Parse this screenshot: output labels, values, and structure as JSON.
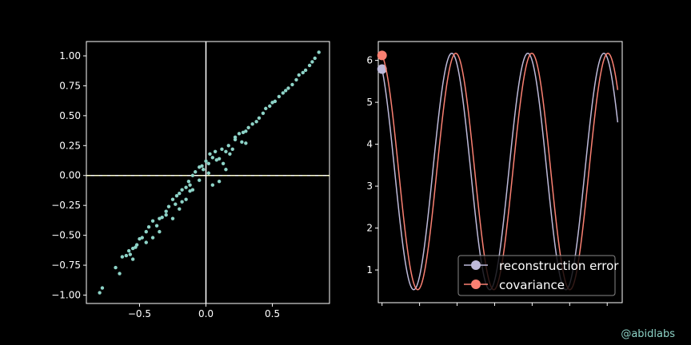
{
  "credit": "@abidlabs",
  "colors": {
    "background": "#000000",
    "axes": "#ffffff",
    "scatter": "#8dd3c7",
    "reconstruction": "#bebada",
    "covariance": "#fa8072",
    "credit": "#8dd3c7"
  },
  "chart_data": [
    {
      "type": "scatter",
      "xlim": [
        -0.9,
        0.93
      ],
      "ylim": [
        -1.07,
        1.12
      ],
      "xticks": [
        -0.5,
        0.0,
        0.5
      ],
      "xtick_labels": [
        "−0.5",
        "0.0",
        "0.5"
      ],
      "yticks": [
        -1.0,
        -0.75,
        -0.5,
        -0.25,
        0.0,
        0.25,
        0.5,
        0.75,
        1.0
      ],
      "ytick_labels": [
        "−1.00",
        "−0.75",
        "−0.50",
        "−0.25",
        "0.00",
        "0.25",
        "0.50",
        "0.75",
        "1.00"
      ],
      "reference_lines": {
        "vertical_x": 0.0,
        "horizontal_y": 0.0
      },
      "x": [
        -0.8,
        -0.78,
        -0.68,
        -0.65,
        -0.63,
        -0.6,
        -0.58,
        -0.57,
        -0.55,
        -0.53,
        -0.52,
        -0.5,
        -0.48,
        -0.45,
        -0.43,
        -0.4,
        -0.37,
        -0.35,
        -0.33,
        -0.3,
        -0.28,
        -0.25,
        -0.23,
        -0.22,
        -0.2,
        -0.18,
        -0.15,
        -0.13,
        -0.12,
        -0.1,
        -0.08,
        -0.05,
        -0.03,
        -0.02,
        0.0,
        0.02,
        0.03,
        0.05,
        0.07,
        0.08,
        0.1,
        0.12,
        0.13,
        0.15,
        0.17,
        0.18,
        0.2,
        0.22,
        0.25,
        0.27,
        0.28,
        0.3,
        0.32,
        0.35,
        0.38,
        0.4,
        0.43,
        0.45,
        0.48,
        0.5,
        0.52,
        0.55,
        0.58,
        0.6,
        0.62,
        0.65,
        0.68,
        0.7,
        0.73,
        0.75,
        0.78,
        0.8,
        0.82,
        0.85,
        -0.25,
        -0.2,
        -0.15,
        -0.1,
        -0.05,
        0.05,
        0.1,
        0.15,
        -0.55,
        -0.45,
        -0.35,
        -0.4,
        -0.3,
        -0.18,
        -0.12,
        0.02,
        0.22,
        0.3
      ],
      "y": [
        -0.98,
        -0.94,
        -0.77,
        -0.82,
        -0.68,
        -0.67,
        -0.63,
        -0.66,
        -0.61,
        -0.6,
        -0.58,
        -0.53,
        -0.52,
        -0.47,
        -0.43,
        -0.38,
        -0.42,
        -0.36,
        -0.35,
        -0.3,
        -0.26,
        -0.2,
        -0.24,
        -0.17,
        -0.15,
        -0.12,
        -0.1,
        -0.05,
        -0.08,
        0.0,
        0.03,
        0.07,
        0.08,
        0.05,
        0.12,
        0.1,
        0.18,
        0.15,
        0.2,
        0.13,
        0.14,
        0.22,
        0.1,
        0.2,
        0.25,
        0.18,
        0.22,
        0.3,
        0.35,
        0.28,
        0.36,
        0.37,
        0.4,
        0.43,
        0.45,
        0.48,
        0.52,
        0.56,
        0.58,
        0.61,
        0.62,
        0.66,
        0.69,
        0.71,
        0.73,
        0.76,
        0.8,
        0.84,
        0.86,
        0.88,
        0.92,
        0.95,
        0.98,
        1.03,
        -0.36,
        -0.28,
        -0.2,
        -0.12,
        -0.04,
        -0.08,
        -0.05,
        0.05,
        -0.7,
        -0.56,
        -0.47,
        -0.52,
        -0.33,
        -0.22,
        -0.13,
        0.02,
        0.32,
        0.27
      ]
    },
    {
      "type": "line",
      "xlim": [
        -0.1,
        6.4
      ],
      "ylim": [
        0.22,
        6.45
      ],
      "yticks": [
        1,
        2,
        3,
        4,
        5,
        6
      ],
      "ytick_labels": [
        "1",
        "2",
        "3",
        "4",
        "5",
        "6"
      ],
      "xticks_unlabeled": [
        0,
        1,
        2,
        3,
        4,
        5,
        6
      ],
      "series": [
        {
          "name": "reconstruction error",
          "amplitude": 2.82,
          "offset": 3.35,
          "phase_deg": 30,
          "cycles": 3.1,
          "x_range": [
            0,
            6.28
          ]
        },
        {
          "name": "covariance",
          "amplitude": 2.82,
          "offset": 3.35,
          "phase_deg": 11,
          "cycles": 3.1,
          "x_range": [
            0,
            6.28
          ]
        }
      ],
      "legend": {
        "placement": "lower right",
        "entries": [
          "reconstruction error",
          "covariance"
        ]
      }
    }
  ]
}
